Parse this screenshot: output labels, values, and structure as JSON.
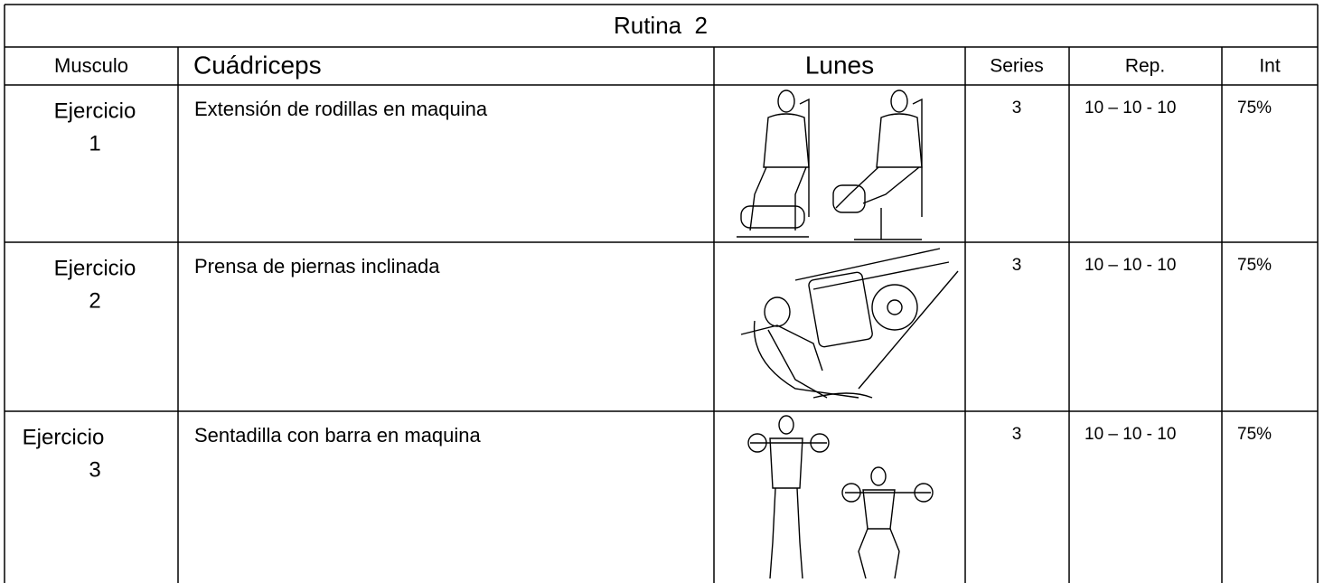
{
  "header": {
    "title": "Rutina  2"
  },
  "table": {
    "columns": [
      "Musculo",
      "Cuádriceps",
      "Lunes",
      "Series",
      "Rep.",
      "Int"
    ],
    "rows": [
      {
        "label": [
          "Ejercicio",
          "1"
        ],
        "exercise": "Extensión de rodillas en maquina",
        "series": "3",
        "reps": "10 – 10 - 10",
        "intensity": "75%"
      },
      {
        "label": [
          "Ejercicio",
          "2"
        ],
        "exercise": "Prensa de piernas inclinada",
        "series": "3",
        "reps": "10 – 10 - 10",
        "intensity": "75%"
      },
      {
        "label": [
          "Ejercicio",
          "3"
        ],
        "exercise": "Sentadilla con barra en maquina",
        "series": "3",
        "reps": "10 – 10 - 10",
        "intensity": "75%"
      }
    ]
  }
}
